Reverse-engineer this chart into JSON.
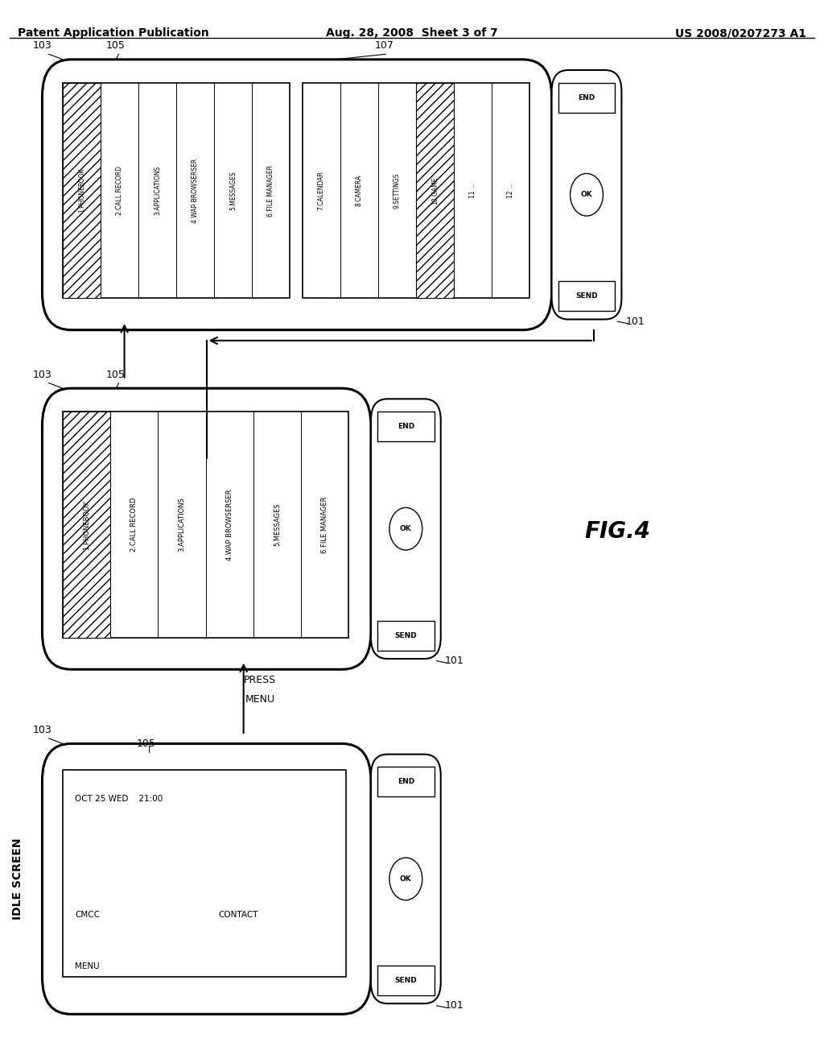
{
  "header_left": "Patent Application Publication",
  "header_mid": "Aug. 28, 2008  Sheet 3 of 7",
  "header_right": "US 2008/0207273 A1",
  "figure_label": "FIG.4",
  "idle_label": "IDLE SCREEN",
  "menu_items_left": [
    "1.PHONEBOOK",
    "2.CALL RECORD",
    "3.APPLICATIONS",
    "4.WAP BROWSERSER",
    "5.MESSAGES",
    "6.FILE MANAGER"
  ],
  "menu_items_right": [
    "7.CALENDAR",
    "8.CAMERA",
    "9.SETTINGS",
    "10.GAME",
    "11 ...",
    "12 ..."
  ],
  "idle_screen_line1": "OCT 25 WED    21:00",
  "idle_screen_cmcc": "CMCC",
  "idle_screen_contact": "CONTACT",
  "idle_screen_menu": "MENU",
  "press_menu": "PRESS\nMENU"
}
